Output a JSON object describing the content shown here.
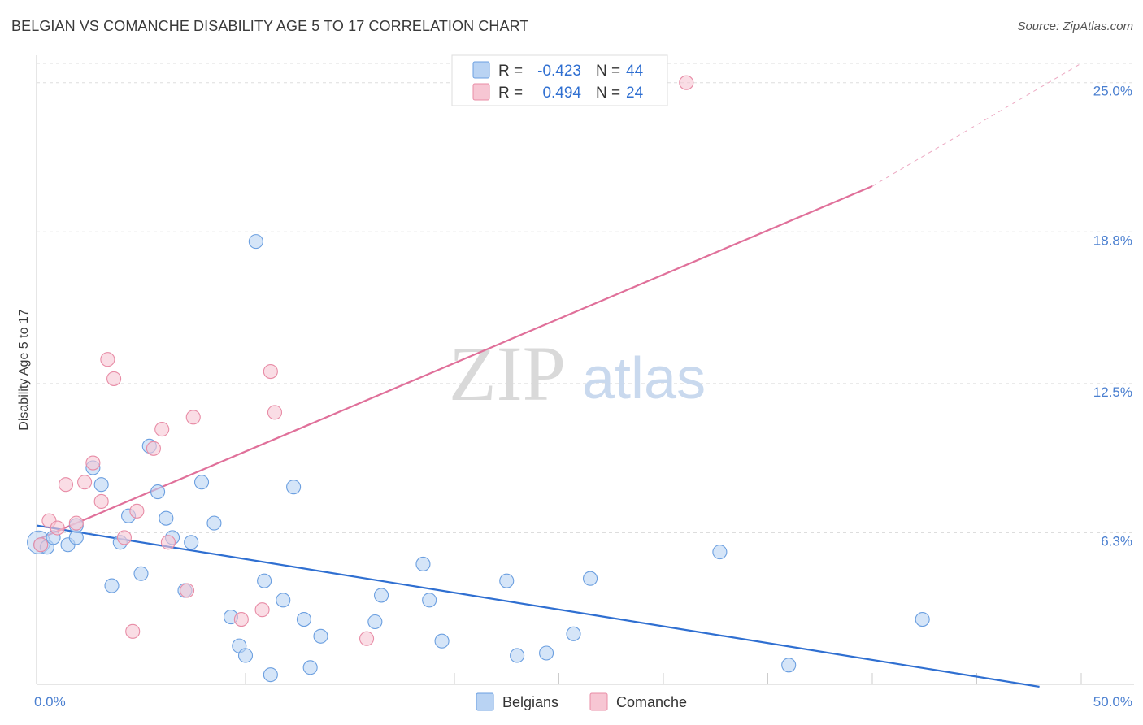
{
  "title": "BELGIAN VS COMANCHE DISABILITY AGE 5 TO 17 CORRELATION CHART",
  "source": "Source: ZipAtlas.com",
  "watermark": {
    "zip": "ZIP",
    "atlas": "atlas"
  },
  "colors": {
    "belgians_fill": "#b9d3f3",
    "belgians_stroke": "#6b9fe0",
    "belgians_line": "#2f6fd1",
    "comanche_fill": "#f7c6d3",
    "comanche_stroke": "#e88ca6",
    "comanche_line": "#e0709a",
    "grid": "#dddddd",
    "tick_label": "#4a7fd0"
  },
  "legend": {
    "rows": [
      {
        "r_label": "R =",
        "r_value": "-0.423",
        "n_label": "N =",
        "n_value": "44"
      },
      {
        "r_label": "R =",
        "r_value": "0.494",
        "n_label": "N =",
        "n_value": "24"
      }
    ]
  },
  "chart_data": {
    "type": "scatter",
    "title": "BELGIAN VS COMANCHE DISABILITY AGE 5 TO 17 CORRELATION CHART",
    "xlabel": "",
    "ylabel": "Disability Age 5 to 17",
    "xlim": [
      0,
      50
    ],
    "ylim": [
      0,
      25.8
    ],
    "x_tick_labels": [
      "0.0%",
      "50.0%"
    ],
    "y_ticks": [
      6.3,
      12.5,
      18.8,
      25.0
    ],
    "y_tick_labels": [
      "6.3%",
      "12.5%",
      "18.8%",
      "25.0%"
    ],
    "grid": true,
    "legend_position": "bottom-center",
    "series": [
      {
        "name": "Belgians",
        "points": [
          [
            0.2,
            5.8
          ],
          [
            0.5,
            5.7
          ],
          [
            0.8,
            6.1
          ],
          [
            1.5,
            5.8
          ],
          [
            1.9,
            6.1
          ],
          [
            1.9,
            6.6
          ],
          [
            2.7,
            9.0
          ],
          [
            3.1,
            8.3
          ],
          [
            3.6,
            4.1
          ],
          [
            4.0,
            5.9
          ],
          [
            4.4,
            7.0
          ],
          [
            5.0,
            4.6
          ],
          [
            5.4,
            9.9
          ],
          [
            5.8,
            8.0
          ],
          [
            6.2,
            6.9
          ],
          [
            6.5,
            6.1
          ],
          [
            7.1,
            3.9
          ],
          [
            7.4,
            5.9
          ],
          [
            7.9,
            8.4
          ],
          [
            8.5,
            6.7
          ],
          [
            9.3,
            2.8
          ],
          [
            9.7,
            1.6
          ],
          [
            10.0,
            1.2
          ],
          [
            10.5,
            18.4
          ],
          [
            10.9,
            4.3
          ],
          [
            11.2,
            0.4
          ],
          [
            11.8,
            3.5
          ],
          [
            12.3,
            8.2
          ],
          [
            12.8,
            2.7
          ],
          [
            13.1,
            0.7
          ],
          [
            13.6,
            2.0
          ],
          [
            16.2,
            2.6
          ],
          [
            16.5,
            3.7
          ],
          [
            18.5,
            5.0
          ],
          [
            18.8,
            3.5
          ],
          [
            19.4,
            1.8
          ],
          [
            22.5,
            4.3
          ],
          [
            23.0,
            1.2
          ],
          [
            24.4,
            1.3
          ],
          [
            25.7,
            2.1
          ],
          [
            26.5,
            4.4
          ],
          [
            32.7,
            5.5
          ],
          [
            36.0,
            0.8
          ],
          [
            42.4,
            2.7
          ]
        ]
      },
      {
        "name": "Comanche",
        "points": [
          [
            0.2,
            5.8
          ],
          [
            0.6,
            6.8
          ],
          [
            1.0,
            6.5
          ],
          [
            1.4,
            8.3
          ],
          [
            1.9,
            6.7
          ],
          [
            2.3,
            8.4
          ],
          [
            2.7,
            9.2
          ],
          [
            3.1,
            7.6
          ],
          [
            3.4,
            13.5
          ],
          [
            3.7,
            12.7
          ],
          [
            4.2,
            6.1
          ],
          [
            4.6,
            2.2
          ],
          [
            4.8,
            7.2
          ],
          [
            5.6,
            9.8
          ],
          [
            6.0,
            10.6
          ],
          [
            6.3,
            5.9
          ],
          [
            7.2,
            3.9
          ],
          [
            7.5,
            11.1
          ],
          [
            9.8,
            2.7
          ],
          [
            10.8,
            3.1
          ],
          [
            11.2,
            13.0
          ],
          [
            11.4,
            11.3
          ],
          [
            15.8,
            1.9
          ],
          [
            31.1,
            25.0
          ]
        ]
      }
    ],
    "trendlines": [
      {
        "series": "Belgians",
        "x": [
          0,
          48
        ],
        "y": [
          6.6,
          -0.1
        ]
      },
      {
        "series": "Comanche",
        "x": [
          0,
          40
        ],
        "y": [
          6.0,
          20.7
        ],
        "dashed_extension_to": [
          50,
          25.8
        ]
      }
    ]
  },
  "bottom_legend": [
    {
      "label": "Belgians"
    },
    {
      "label": "Comanche"
    }
  ]
}
